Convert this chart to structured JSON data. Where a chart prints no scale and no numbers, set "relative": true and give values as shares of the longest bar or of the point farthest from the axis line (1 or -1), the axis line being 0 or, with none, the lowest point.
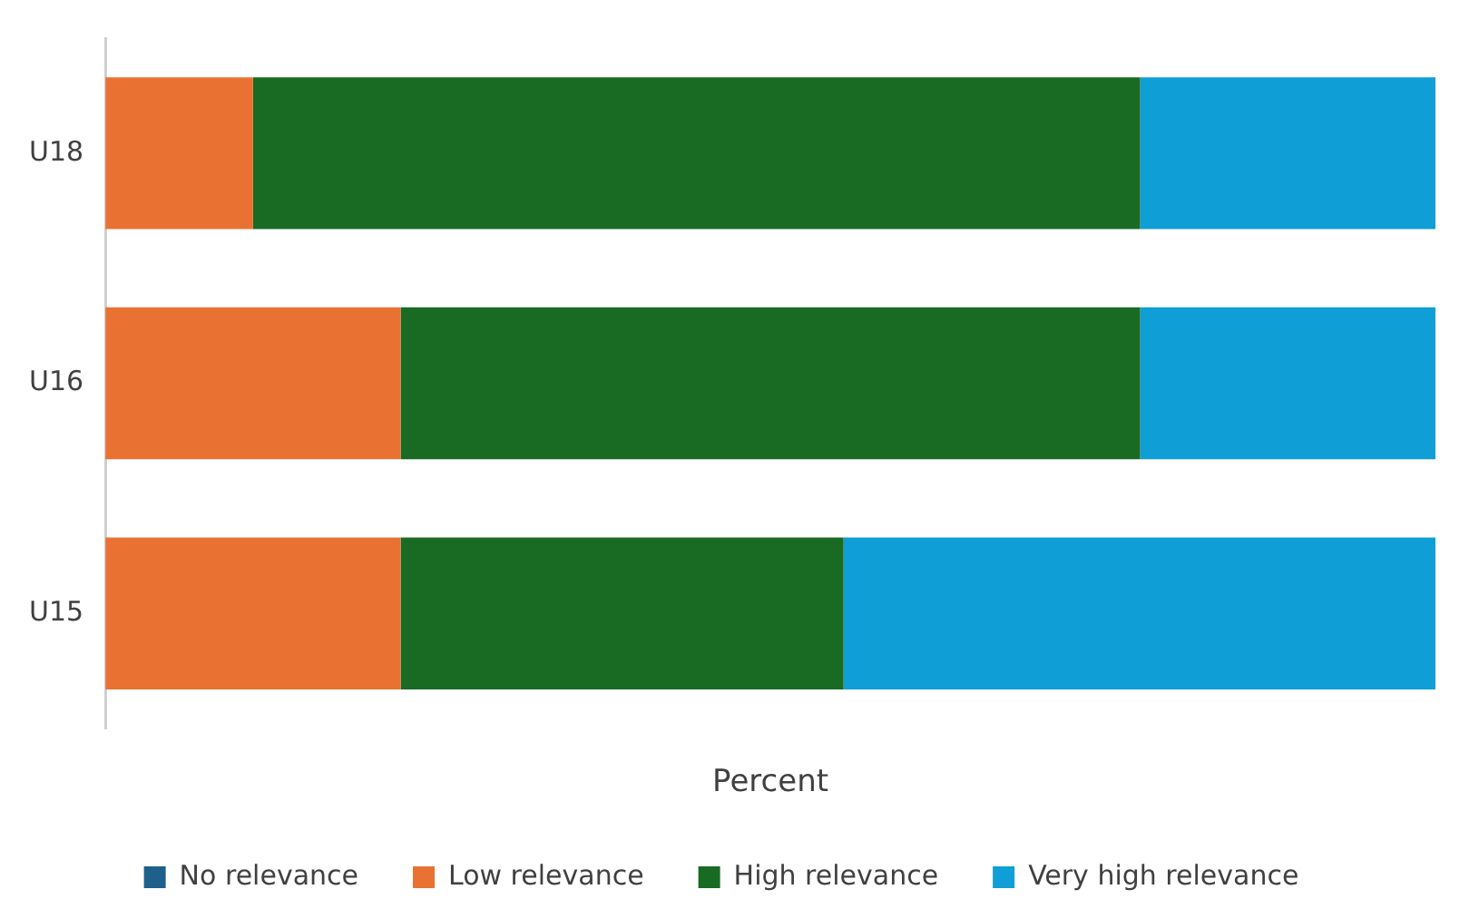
{
  "chart_data": {
    "type": "bar",
    "orientation": "horizontal",
    "stacked": true,
    "relative": true,
    "xlabel": "Percent",
    "categories": [
      "U18",
      "U16",
      "U15"
    ],
    "legend": "bottom",
    "grid": false,
    "series": [
      {
        "name": "No relevance",
        "color": "#1f5f8b",
        "values": [
          0,
          0,
          0
        ]
      },
      {
        "name": "Low relevance",
        "color": "#e97132",
        "values": [
          0.111,
          0.222,
          0.222
        ]
      },
      {
        "name": "High relevance",
        "color": "#196b24",
        "values": [
          0.667,
          0.556,
          0.333
        ]
      },
      {
        "name": "Very high relevance",
        "color": "#0f9ed5",
        "values": [
          0.222,
          0.222,
          0.445
        ]
      }
    ]
  }
}
